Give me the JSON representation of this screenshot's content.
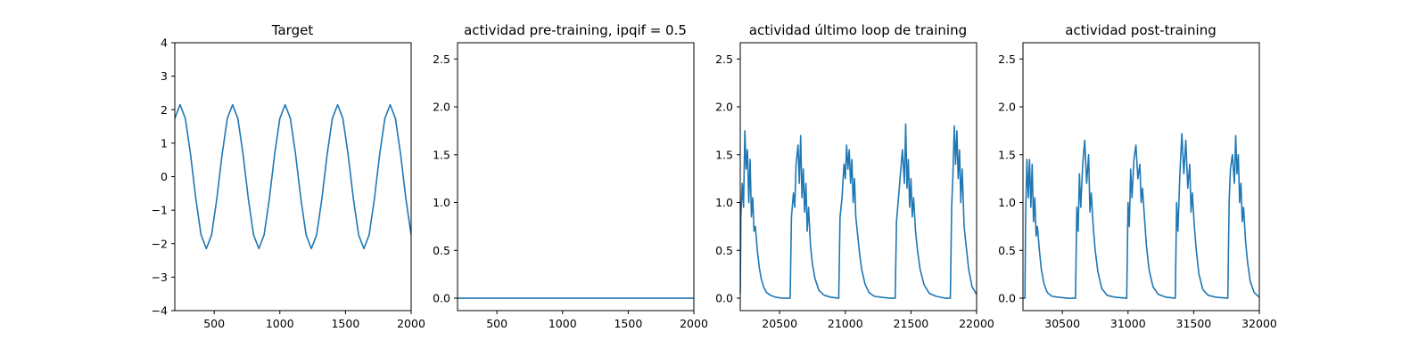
{
  "figure": {
    "background": "#ffffff",
    "line_color": "#1f77b4"
  },
  "chart_data": [
    {
      "type": "line",
      "title": "Target",
      "xlim": [
        200,
        2000
      ],
      "ylim": [
        -4,
        4
      ],
      "xticks": [
        500,
        1000,
        1500,
        2000
      ],
      "xtick_labels": [
        "500",
        "1000",
        "1500",
        "2000"
      ],
      "yticks": [
        -4,
        -3,
        -2,
        -1,
        0,
        1,
        2,
        3,
        4
      ],
      "ytick_labels": [
        "−4",
        "−3",
        "−2",
        "−1",
        "0",
        "1",
        "2",
        "3",
        "4"
      ],
      "grid": false,
      "series": [
        {
          "x": [
            200,
            240,
            280,
            320,
            360,
            400,
            440,
            480,
            520,
            560,
            600,
            640,
            680,
            720,
            760,
            800,
            840,
            880,
            920,
            960,
            1000,
            1040,
            1080,
            1120,
            1160,
            1200,
            1240,
            1280,
            1320,
            1360,
            1400,
            1440,
            1480,
            1520,
            1560,
            1600,
            1640,
            1680,
            1720,
            1760,
            1800,
            1840,
            1880,
            1920,
            1960,
            2000
          ],
          "values": [
            1.74,
            2.15,
            1.74,
            0.66,
            -0.66,
            -1.74,
            -2.15,
            -1.74,
            -0.66,
            0.66,
            1.74,
            2.15,
            1.74,
            0.66,
            -0.66,
            -1.74,
            -2.15,
            -1.74,
            -0.66,
            0.66,
            1.74,
            2.15,
            1.74,
            0.66,
            -0.66,
            -1.74,
            -2.15,
            -1.74,
            -0.66,
            0.66,
            1.74,
            2.15,
            1.74,
            0.66,
            -0.66,
            -1.74,
            -2.15,
            -1.74,
            -0.66,
            0.66,
            1.74,
            2.15,
            1.74,
            0.66,
            -0.66,
            -1.74
          ]
        }
      ]
    },
    {
      "type": "line",
      "title": "actividad pre-training, ipqif = 0.5",
      "xlim": [
        200,
        2000
      ],
      "ylim": [
        -0.13,
        2.67
      ],
      "xticks": [
        500,
        1000,
        1500,
        2000
      ],
      "xtick_labels": [
        "500",
        "1000",
        "1500",
        "2000"
      ],
      "yticks": [
        0.0,
        0.5,
        1.0,
        1.5,
        2.0,
        2.5
      ],
      "ytick_labels": [
        "0.0",
        "0.5",
        "1.0",
        "1.5",
        "2.0",
        "2.5"
      ],
      "grid": false,
      "series": [
        {
          "x": [
            200,
            2000
          ],
          "values": [
            0.0,
            0.0
          ]
        }
      ]
    },
    {
      "type": "line",
      "title": "actividad último loop de training",
      "xlim": [
        20200,
        22000
      ],
      "ylim": [
        -0.13,
        2.67
      ],
      "xticks": [
        20500,
        21000,
        21500,
        22000
      ],
      "xtick_labels": [
        "20500",
        "21000",
        "21500",
        "22000"
      ],
      "yticks": [
        0.0,
        0.5,
        1.0,
        1.5,
        2.0,
        2.5
      ],
      "ytick_labels": [
        "0.0",
        "0.5",
        "1.0",
        "1.5",
        "2.0",
        "2.5"
      ],
      "grid": false,
      "series": [
        {
          "x": [
            20200,
            20205,
            20215,
            20225,
            20235,
            20245,
            20255,
            20265,
            20275,
            20285,
            20295,
            20305,
            20315,
            20330,
            20345,
            20360,
            20380,
            20400,
            20430,
            20470,
            20520,
            20580,
            20590,
            20605,
            20615,
            20625,
            20640,
            20650,
            20660,
            20670,
            20680,
            20690,
            20700,
            20710,
            20720,
            20735,
            20750,
            20770,
            20800,
            20840,
            20890,
            20950,
            20960,
            20975,
            20990,
            21000,
            21010,
            21020,
            21030,
            21040,
            21050,
            21060,
            21070,
            21080,
            21095,
            21110,
            21125,
            21150,
            21180,
            21220,
            21270,
            21340,
            21380,
            21390,
            21405,
            21420,
            21435,
            21450,
            21460,
            21470,
            21480,
            21490,
            21500,
            21510,
            21520,
            21535,
            21550,
            21570,
            21600,
            21640,
            21690,
            21760,
            21800,
            21810,
            21820,
            21830,
            21840,
            21850,
            21860,
            21870,
            21880,
            21890,
            21905,
            21920,
            21940,
            21965,
            22000
          ],
          "values": [
            0.05,
            0.85,
            1.2,
            0.95,
            1.75,
            1.35,
            1.55,
            1.0,
            1.45,
            0.85,
            1.05,
            0.7,
            0.75,
            0.5,
            0.32,
            0.2,
            0.11,
            0.06,
            0.03,
            0.01,
            0.0,
            0.0,
            0.85,
            1.1,
            0.95,
            1.4,
            1.6,
            1.2,
            1.7,
            1.05,
            1.35,
            0.9,
            1.2,
            0.7,
            0.95,
            0.55,
            0.35,
            0.2,
            0.08,
            0.03,
            0.01,
            0.0,
            0.85,
            1.05,
            1.4,
            1.25,
            1.6,
            1.35,
            1.55,
            1.2,
            1.45,
            1.0,
            1.25,
            0.85,
            0.65,
            0.45,
            0.3,
            0.15,
            0.06,
            0.02,
            0.01,
            0.0,
            0.0,
            0.8,
            1.05,
            1.3,
            1.55,
            1.2,
            1.82,
            1.15,
            1.45,
            0.95,
            1.25,
            0.85,
            1.05,
            0.7,
            0.5,
            0.3,
            0.14,
            0.05,
            0.02,
            0.0,
            0.0,
            0.95,
            1.3,
            1.8,
            1.4,
            1.75,
            1.25,
            1.55,
            1.0,
            1.35,
            0.75,
            0.55,
            0.3,
            0.12,
            0.04
          ]
        }
      ]
    },
    {
      "type": "line",
      "title": "actividad post-training",
      "xlim": [
        30200,
        32000
      ],
      "ylim": [
        -0.13,
        2.67
      ],
      "xticks": [
        30500,
        31000,
        31500,
        32000
      ],
      "xtick_labels": [
        "30500",
        "31000",
        "31500",
        "32000"
      ],
      "yticks": [
        0.0,
        0.5,
        1.0,
        1.5,
        2.0,
        2.5
      ],
      "ytick_labels": [
        "0.0",
        "0.5",
        "1.0",
        "1.5",
        "2.0",
        "2.5"
      ],
      "grid": false,
      "series": [
        {
          "x": [
            30200,
            30215,
            30220,
            30230,
            30240,
            30250,
            30260,
            30270,
            30280,
            30290,
            30300,
            30310,
            30325,
            30340,
            30360,
            30385,
            30420,
            30470,
            30540,
            30600,
            30610,
            30620,
            30630,
            30640,
            30655,
            30670,
            30685,
            30700,
            30710,
            30720,
            30735,
            30750,
            30770,
            30800,
            30840,
            30900,
            30990,
            31000,
            31010,
            31020,
            31030,
            31045,
            31060,
            31075,
            31090,
            31100,
            31110,
            31125,
            31140,
            31160,
            31190,
            31230,
            31290,
            31360,
            31370,
            31380,
            31395,
            31410,
            31425,
            31440,
            31455,
            31470,
            31480,
            31490,
            31505,
            31520,
            31540,
            31570,
            31610,
            31670,
            31760,
            31770,
            31780,
            31795,
            31810,
            31820,
            31830,
            31840,
            31850,
            31860,
            31870,
            31880,
            31895,
            31910,
            31930,
            31960,
            32000
          ],
          "values": [
            0.0,
            0.0,
            0.85,
            1.45,
            1.05,
            1.45,
            0.95,
            1.4,
            0.8,
            1.05,
            0.65,
            0.75,
            0.5,
            0.3,
            0.15,
            0.06,
            0.02,
            0.01,
            0.0,
            0.0,
            0.95,
            0.7,
            1.3,
            0.95,
            1.4,
            1.65,
            1.2,
            1.5,
            0.9,
            1.1,
            0.75,
            0.5,
            0.28,
            0.1,
            0.03,
            0.01,
            0.0,
            1.0,
            0.75,
            1.35,
            1.05,
            1.45,
            1.6,
            1.25,
            1.4,
            1.0,
            1.15,
            0.85,
            0.55,
            0.3,
            0.12,
            0.04,
            0.01,
            0.0,
            1.0,
            0.7,
            1.3,
            1.72,
            1.3,
            1.65,
            1.15,
            1.4,
            0.9,
            1.1,
            0.75,
            0.5,
            0.25,
            0.09,
            0.03,
            0.01,
            0.0,
            1.0,
            1.35,
            1.5,
            1.2,
            1.7,
            1.3,
            1.5,
            1.0,
            1.2,
            0.8,
            0.95,
            0.6,
            0.38,
            0.18,
            0.06,
            0.01
          ]
        }
      ]
    }
  ]
}
